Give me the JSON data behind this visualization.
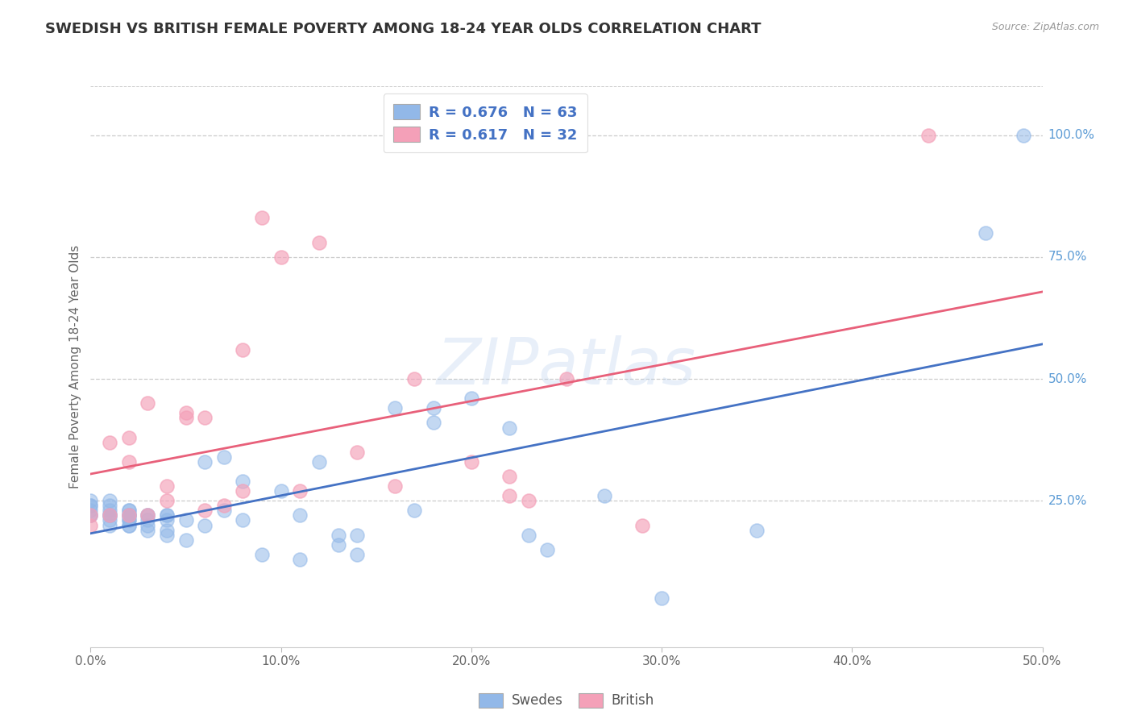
{
  "title": "SWEDISH VS BRITISH FEMALE POVERTY AMONG 18-24 YEAR OLDS CORRELATION CHART",
  "source": "Source: ZipAtlas.com",
  "ylabel": "Female Poverty Among 18-24 Year Olds",
  "x_tick_labels": [
    "0.0%",
    "10.0%",
    "20.0%",
    "30.0%",
    "40.0%",
    "50.0%"
  ],
  "x_tick_vals": [
    0.0,
    0.1,
    0.2,
    0.3,
    0.4,
    0.5
  ],
  "y_tick_labels_right": [
    "100.0%",
    "75.0%",
    "50.0%",
    "25.0%"
  ],
  "y_tick_vals": [
    1.0,
    0.75,
    0.5,
    0.25
  ],
  "xlim": [
    0.0,
    0.5
  ],
  "ylim": [
    -0.05,
    1.1
  ],
  "legend_swedes_label": "Swedes",
  "legend_british_label": "British",
  "legend_r_swedes": "R = 0.676",
  "legend_n_swedes": "N = 63",
  "legend_r_british": "R = 0.617",
  "legend_n_british": "N = 32",
  "swedes_color": "#92b8e8",
  "british_color": "#f4a0b8",
  "swedes_line_color": "#4472c4",
  "british_line_color": "#e8607a",
  "watermark": "ZIPatlas",
  "swedes_x": [
    0.0,
    0.0,
    0.0,
    0.0,
    0.0,
    0.0,
    0.01,
    0.01,
    0.01,
    0.01,
    0.01,
    0.01,
    0.01,
    0.01,
    0.02,
    0.02,
    0.02,
    0.02,
    0.02,
    0.02,
    0.02,
    0.02,
    0.02,
    0.03,
    0.03,
    0.03,
    0.03,
    0.03,
    0.04,
    0.04,
    0.04,
    0.04,
    0.04,
    0.05,
    0.05,
    0.06,
    0.06,
    0.07,
    0.07,
    0.08,
    0.08,
    0.09,
    0.1,
    0.11,
    0.11,
    0.12,
    0.13,
    0.13,
    0.14,
    0.14,
    0.16,
    0.17,
    0.18,
    0.18,
    0.2,
    0.22,
    0.23,
    0.24,
    0.27,
    0.3,
    0.35,
    0.47,
    0.49
  ],
  "swedes_y": [
    0.22,
    0.23,
    0.24,
    0.25,
    0.22,
    0.24,
    0.22,
    0.2,
    0.25,
    0.24,
    0.23,
    0.22,
    0.22,
    0.21,
    0.23,
    0.21,
    0.22,
    0.22,
    0.2,
    0.21,
    0.2,
    0.23,
    0.22,
    0.22,
    0.19,
    0.2,
    0.21,
    0.22,
    0.22,
    0.22,
    0.21,
    0.19,
    0.18,
    0.21,
    0.17,
    0.33,
    0.2,
    0.34,
    0.23,
    0.21,
    0.29,
    0.14,
    0.27,
    0.13,
    0.22,
    0.33,
    0.18,
    0.16,
    0.18,
    0.14,
    0.44,
    0.23,
    0.41,
    0.44,
    0.46,
    0.4,
    0.18,
    0.15,
    0.26,
    0.05,
    0.19,
    0.8,
    1.0
  ],
  "british_x": [
    0.0,
    0.0,
    0.01,
    0.01,
    0.02,
    0.02,
    0.02,
    0.03,
    0.03,
    0.04,
    0.04,
    0.05,
    0.05,
    0.06,
    0.06,
    0.07,
    0.08,
    0.08,
    0.09,
    0.1,
    0.11,
    0.12,
    0.14,
    0.16,
    0.17,
    0.2,
    0.22,
    0.22,
    0.23,
    0.25,
    0.29,
    0.44
  ],
  "british_y": [
    0.22,
    0.2,
    0.37,
    0.22,
    0.33,
    0.38,
    0.22,
    0.45,
    0.22,
    0.25,
    0.28,
    0.42,
    0.43,
    0.23,
    0.42,
    0.24,
    0.56,
    0.27,
    0.83,
    0.75,
    0.27,
    0.78,
    0.35,
    0.28,
    0.5,
    0.33,
    0.26,
    0.3,
    0.25,
    0.5,
    0.2,
    1.0
  ]
}
